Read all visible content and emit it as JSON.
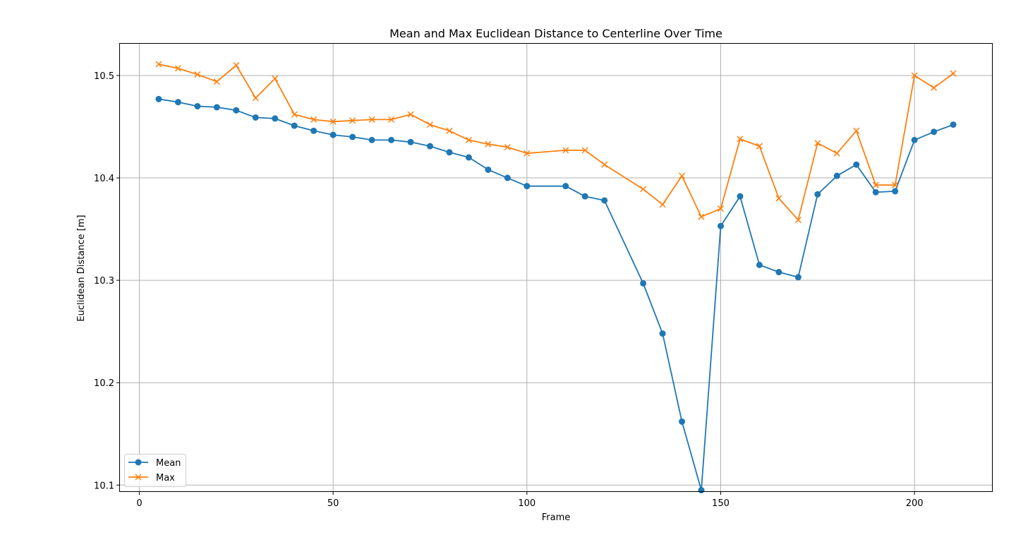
{
  "chart_data": {
    "type": "line",
    "title": "Mean and Max Euclidean Distance to Centerline Over Time",
    "xlabel": "Frame",
    "ylabel": "Euclidean Distance [m]",
    "xlim": [
      -5,
      220
    ],
    "ylim": [
      10.094,
      10.531
    ],
    "xticks": [
      0,
      50,
      100,
      150,
      200
    ],
    "yticks": [
      10.1,
      10.2,
      10.3,
      10.4,
      10.5
    ],
    "xtick_labels": [
      "0",
      "50",
      "100",
      "150",
      "200"
    ],
    "ytick_labels": [
      "10.1",
      "10.2",
      "10.3",
      "10.4",
      "10.5"
    ],
    "grid": true,
    "legend_position": "lower-left",
    "series": [
      {
        "name": "Mean",
        "color": "#1f77b4",
        "marker": "circle",
        "x": [
          5,
          10,
          15,
          20,
          25,
          30,
          35,
          40,
          45,
          50,
          55,
          60,
          65,
          70,
          75,
          80,
          85,
          90,
          95,
          100,
          110,
          115,
          120,
          130,
          135,
          140,
          145,
          150,
          155,
          160,
          165,
          170,
          175,
          180,
          185,
          190,
          195,
          200,
          205,
          210
        ],
        "values": [
          10.477,
          10.474,
          10.47,
          10.469,
          10.466,
          10.459,
          10.458,
          10.451,
          10.446,
          10.442,
          10.44,
          10.437,
          10.437,
          10.435,
          10.431,
          10.425,
          10.42,
          10.408,
          10.4,
          10.392,
          10.392,
          10.382,
          10.378,
          10.297,
          10.248,
          10.162,
          10.095,
          10.353,
          10.382,
          10.315,
          10.308,
          10.303,
          10.384,
          10.402,
          10.413,
          10.386,
          10.387,
          10.437,
          10.445,
          10.452
        ]
      },
      {
        "name": "Max",
        "color": "#ff7f0e",
        "marker": "x",
        "x": [
          5,
          10,
          15,
          20,
          25,
          30,
          35,
          40,
          45,
          50,
          55,
          60,
          65,
          70,
          75,
          80,
          85,
          90,
          95,
          100,
          110,
          115,
          120,
          130,
          135,
          140,
          145,
          150,
          155,
          160,
          165,
          170,
          175,
          180,
          185,
          190,
          195,
          200,
          205,
          210
        ],
        "values": [
          10.511,
          10.507,
          10.501,
          10.494,
          10.51,
          10.478,
          10.497,
          10.462,
          10.457,
          10.455,
          10.456,
          10.457,
          10.457,
          10.462,
          10.452,
          10.446,
          10.437,
          10.433,
          10.43,
          10.424,
          10.427,
          10.427,
          10.413,
          10.389,
          10.374,
          10.402,
          10.362,
          10.37,
          10.438,
          10.431,
          10.38,
          10.359,
          10.434,
          10.424,
          10.446,
          10.393,
          10.393,
          10.5,
          10.488,
          10.502
        ]
      }
    ]
  }
}
